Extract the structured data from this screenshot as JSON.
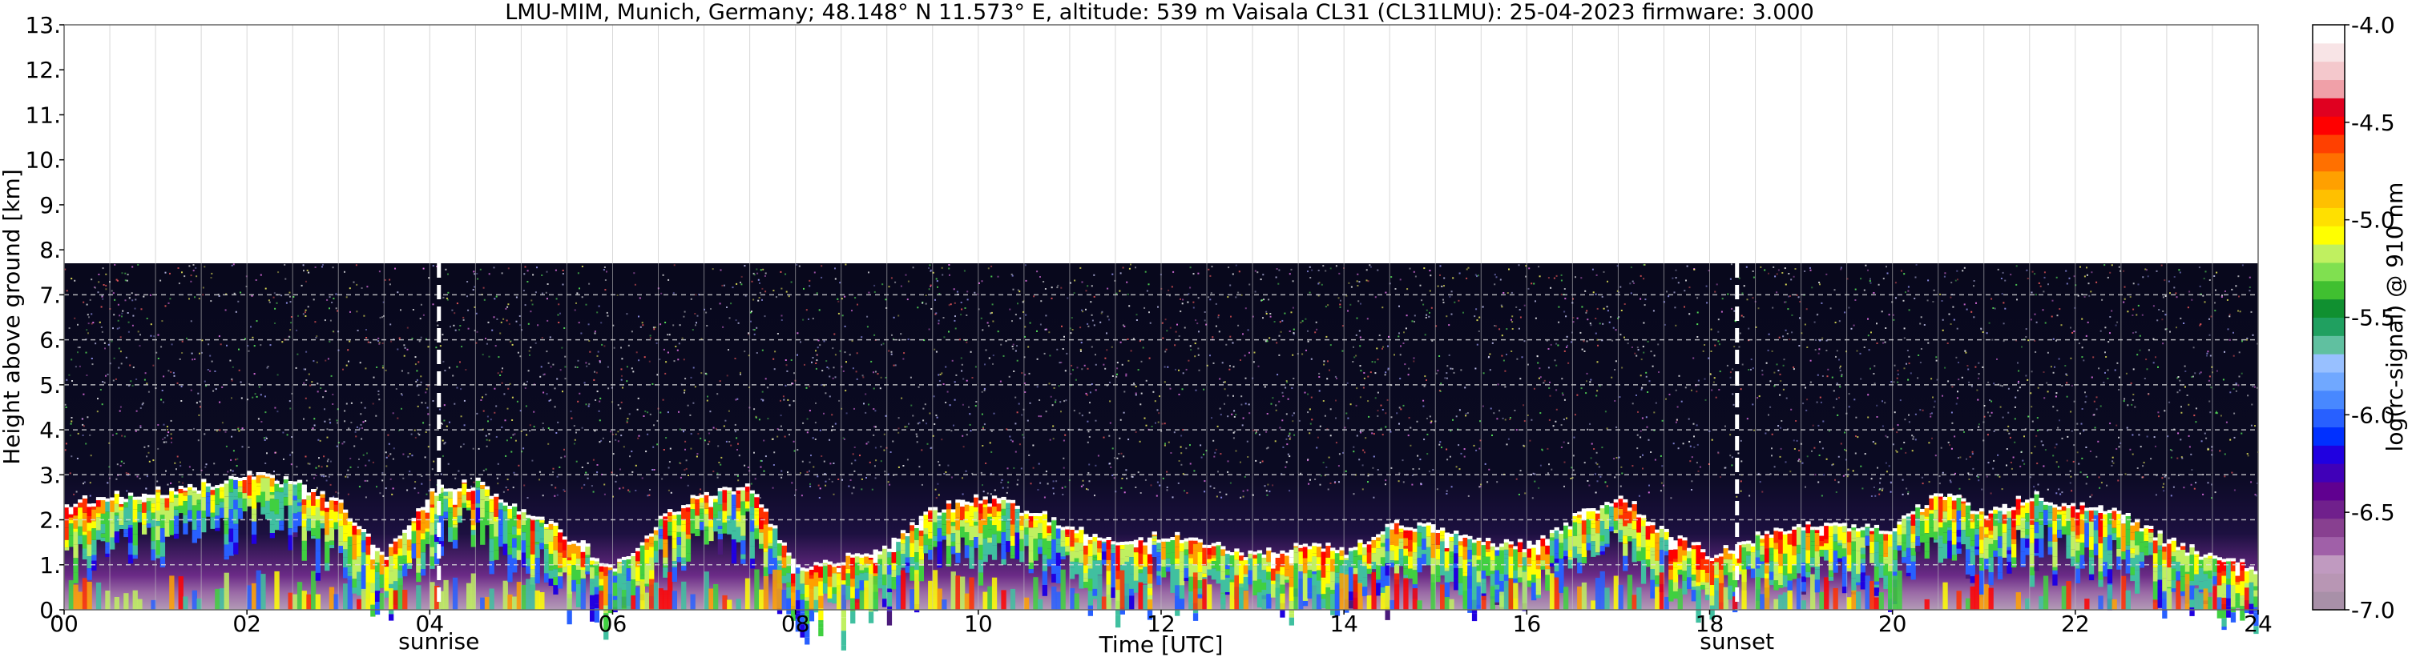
{
  "chart_data": {
    "type": "heatmap",
    "title": "LMU-MIM, Munich, Germany; 48.148° N 11.573° E, altitude: 539 m    Vaisala CL31 (CL31LMU): 25-04-2023    firmware: 3.000",
    "xlabel": "Time [UTC]",
    "ylabel": "Height above ground [km]",
    "xlim": [
      0,
      24
    ],
    "ylim": [
      0,
      13
    ],
    "x_ticks": [
      "00",
      "02",
      "04",
      "06",
      "08",
      "10",
      "12",
      "14",
      "16",
      "18",
      "20",
      "22",
      "24"
    ],
    "y_ticks": [
      "0.",
      "1.",
      "2.",
      "3.",
      "4.",
      "5.",
      "6.",
      "7.",
      "8.",
      "9.",
      "10.",
      "11.",
      "12.",
      "13."
    ],
    "grid": true,
    "measurement_top_km": 7.7,
    "markers": [
      {
        "label": "sunrise",
        "time_h": 4.1
      },
      {
        "label": "sunset",
        "time_h": 18.3
      }
    ],
    "colorbar": {
      "label": "log(rc-signal) @ 910 nm",
      "range": [
        -7.0,
        -4.0
      ],
      "ticks": [
        "-4.0",
        "-4.5",
        "-5.0",
        "-5.5",
        "-6.0",
        "-6.5",
        "-7.0"
      ],
      "colors": [
        "#a890a8",
        "#b896b4",
        "#c09ac0",
        "#a060a8",
        "#884090",
        "#70208c",
        "#600090",
        "#4000b8",
        "#2000e0",
        "#0030ff",
        "#2860ff",
        "#4888ff",
        "#70a8ff",
        "#98c0ff",
        "#60c0a0",
        "#20a060",
        "#109030",
        "#40c030",
        "#80e050",
        "#c0f060",
        "#ffff00",
        "#ffe000",
        "#ffc000",
        "#ffa000",
        "#ff7000",
        "#ff4000",
        "#ff0000",
        "#e00020",
        "#f0a0a8",
        "#f4c8cc",
        "#f8e4e6",
        "#ffffff"
      ]
    },
    "cloud_base_layer_km": [
      {
        "t": 0.0,
        "h": 2.35
      },
      {
        "t": 0.5,
        "h": 2.5
      },
      {
        "t": 1.0,
        "h": 2.6
      },
      {
        "t": 1.5,
        "h": 2.75
      },
      {
        "t": 2.0,
        "h": 2.95
      },
      {
        "t": 2.5,
        "h": 2.8
      },
      {
        "t": 3.0,
        "h": 2.3
      },
      {
        "t": 3.5,
        "h": 1.2
      },
      {
        "t": 4.0,
        "h": 2.6
      },
      {
        "t": 4.5,
        "h": 2.8
      },
      {
        "t": 5.0,
        "h": 2.2
      },
      {
        "t": 5.5,
        "h": 1.6
      },
      {
        "t": 6.0,
        "h": 0.9
      },
      {
        "t": 6.5,
        "h": 2.0
      },
      {
        "t": 7.0,
        "h": 2.6
      },
      {
        "t": 7.5,
        "h": 2.7
      },
      {
        "t": 8.0,
        "h": 0.9
      },
      {
        "t": 8.5,
        "h": 1.1
      },
      {
        "t": 9.0,
        "h": 1.4
      },
      {
        "t": 9.5,
        "h": 2.2
      },
      {
        "t": 10.0,
        "h": 2.5
      },
      {
        "t": 10.5,
        "h": 2.2
      },
      {
        "t": 11.0,
        "h": 1.8
      },
      {
        "t": 11.5,
        "h": 1.5
      },
      {
        "t": 12.0,
        "h": 1.6
      },
      {
        "t": 12.5,
        "h": 1.5
      },
      {
        "t": 13.0,
        "h": 1.2
      },
      {
        "t": 13.5,
        "h": 1.4
      },
      {
        "t": 14.0,
        "h": 1.3
      },
      {
        "t": 14.5,
        "h": 1.9
      },
      {
        "t": 15.0,
        "h": 1.8
      },
      {
        "t": 15.5,
        "h": 1.5
      },
      {
        "t": 16.0,
        "h": 1.4
      },
      {
        "t": 16.5,
        "h": 2.0
      },
      {
        "t": 17.0,
        "h": 2.5
      },
      {
        "t": 17.5,
        "h": 1.7
      },
      {
        "t": 18.0,
        "h": 1.2
      },
      {
        "t": 18.5,
        "h": 1.6
      },
      {
        "t": 19.0,
        "h": 1.8
      },
      {
        "t": 19.5,
        "h": 1.9
      },
      {
        "t": 20.0,
        "h": 1.8
      },
      {
        "t": 20.5,
        "h": 2.6
      },
      {
        "t": 21.0,
        "h": 2.1
      },
      {
        "t": 21.5,
        "h": 2.5
      },
      {
        "t": 22.0,
        "h": 2.3
      },
      {
        "t": 22.5,
        "h": 2.1
      },
      {
        "t": 23.0,
        "h": 1.5
      },
      {
        "t": 23.5,
        "h": 1.1
      },
      {
        "t": 24.0,
        "h": 0.9
      }
    ]
  }
}
